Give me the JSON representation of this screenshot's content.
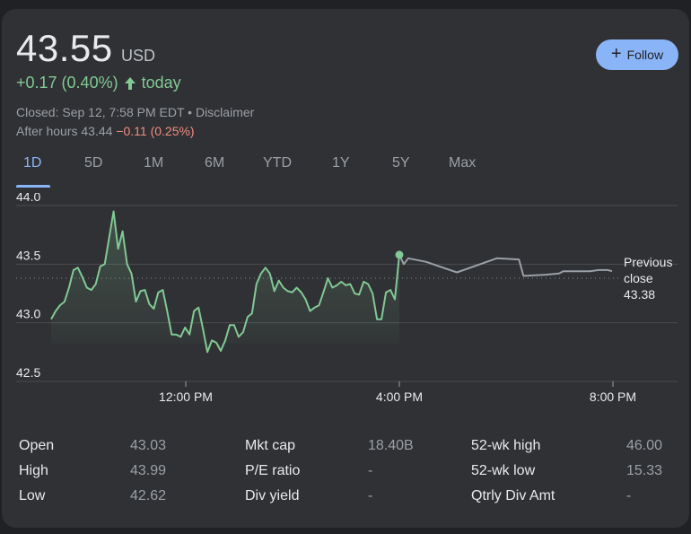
{
  "quote": {
    "price": "43.55",
    "currency": "USD",
    "change": "+0.17 (0.40%)",
    "change_suffix": "today",
    "closed_text": "Closed: Sep 12, 7:58 PM EDT • Disclaimer",
    "after_hours_prefix": "After hours 43.44",
    "after_hours_change": "−0.11 (0.25%)",
    "follow_label": "Follow"
  },
  "tabs": [
    {
      "label": "1D",
      "active": true
    },
    {
      "label": "5D"
    },
    {
      "label": "1M"
    },
    {
      "label": "6M"
    },
    {
      "label": "YTD"
    },
    {
      "label": "1Y"
    },
    {
      "label": "5Y"
    },
    {
      "label": "Max"
    }
  ],
  "colors": {
    "up": "#81c995",
    "down": "#f28b82",
    "accent": "#8ab4f8",
    "after_hours_line": "#9aa0a6"
  },
  "chart_data": {
    "type": "line",
    "y_ticks": [
      "44.0",
      "43.5",
      "43.0",
      "42.5"
    ],
    "ylim": [
      42.5,
      44.0
    ],
    "x_ticks": [
      "12:00 PM",
      "4:00 PM",
      "8:00 PM"
    ],
    "previous_close": {
      "label_line1": "Previous",
      "label_line2": "close",
      "value": 43.38,
      "value_text": "43.38"
    },
    "series": [
      {
        "session": "regular",
        "points": [
          [
            9.5,
            43.03
          ],
          [
            9.6,
            43.1
          ],
          [
            9.7,
            43.15
          ],
          [
            9.8,
            43.18
          ],
          [
            9.9,
            43.3
          ],
          [
            10.0,
            43.45
          ],
          [
            10.1,
            43.47
          ],
          [
            10.2,
            43.39
          ],
          [
            10.3,
            43.3
          ],
          [
            10.4,
            43.28
          ],
          [
            10.5,
            43.33
          ],
          [
            10.6,
            43.48
          ],
          [
            10.7,
            43.5
          ],
          [
            10.8,
            43.73
          ],
          [
            10.9,
            43.95
          ],
          [
            11.0,
            43.63
          ],
          [
            11.1,
            43.78
          ],
          [
            11.2,
            43.5
          ],
          [
            11.3,
            43.42
          ],
          [
            11.4,
            43.18
          ],
          [
            11.5,
            43.27
          ],
          [
            11.6,
            43.28
          ],
          [
            11.7,
            43.16
          ],
          [
            11.8,
            43.12
          ],
          [
            11.9,
            43.26
          ],
          [
            12.0,
            43.28
          ],
          [
            12.1,
            43.1
          ],
          [
            12.2,
            42.9
          ],
          [
            12.3,
            42.9
          ],
          [
            12.4,
            42.88
          ],
          [
            12.5,
            42.96
          ],
          [
            12.6,
            42.9
          ],
          [
            12.7,
            43.1
          ],
          [
            12.8,
            43.13
          ],
          [
            12.9,
            42.95
          ],
          [
            13.0,
            42.75
          ],
          [
            13.1,
            42.85
          ],
          [
            13.2,
            42.83
          ],
          [
            13.3,
            42.76
          ],
          [
            13.4,
            42.85
          ],
          [
            13.5,
            42.98
          ],
          [
            13.6,
            42.98
          ],
          [
            13.7,
            42.88
          ],
          [
            13.8,
            42.92
          ],
          [
            13.9,
            43.05
          ],
          [
            14.0,
            43.08
          ],
          [
            14.1,
            43.33
          ],
          [
            14.2,
            43.42
          ],
          [
            14.3,
            43.47
          ],
          [
            14.4,
            43.42
          ],
          [
            14.5,
            43.27
          ],
          [
            14.6,
            43.36
          ],
          [
            14.7,
            43.3
          ],
          [
            14.8,
            43.27
          ],
          [
            14.9,
            43.26
          ],
          [
            15.0,
            43.3
          ],
          [
            15.1,
            43.26
          ],
          [
            15.2,
            43.2
          ],
          [
            15.3,
            43.1
          ],
          [
            15.4,
            43.13
          ],
          [
            15.5,
            43.15
          ],
          [
            15.6,
            43.26
          ],
          [
            15.7,
            43.38
          ],
          [
            15.8,
            43.3
          ],
          [
            15.9,
            43.32
          ],
          [
            16.0,
            43.35
          ],
          [
            16.1,
            43.32
          ],
          [
            16.2,
            43.33
          ],
          [
            16.3,
            43.25
          ],
          [
            16.4,
            43.24
          ],
          [
            16.5,
            43.35
          ],
          [
            16.6,
            43.33
          ],
          [
            16.7,
            43.25
          ],
          [
            16.8,
            43.03
          ],
          [
            16.9,
            43.03
          ],
          [
            17.0,
            43.26
          ],
          [
            17.1,
            43.28
          ],
          [
            17.2,
            43.2
          ],
          [
            17.3,
            43.58
          ]
        ]
      },
      {
        "session": "after_hours",
        "points": [
          [
            16.0,
            43.58
          ],
          [
            16.1,
            43.5
          ],
          [
            16.2,
            43.55
          ],
          [
            16.6,
            43.52
          ],
          [
            17.3,
            43.43
          ],
          [
            18.2,
            43.55
          ],
          [
            18.7,
            43.54
          ],
          [
            18.8,
            43.4
          ],
          [
            19.3,
            43.41
          ],
          [
            19.6,
            43.42
          ],
          [
            19.7,
            43.44
          ],
          [
            20.3,
            43.44
          ],
          [
            20.5,
            43.45
          ],
          [
            20.7,
            43.45
          ],
          [
            20.8,
            43.44
          ]
        ]
      }
    ]
  },
  "stats": [
    {
      "label": "Open",
      "value": "43.03"
    },
    {
      "label": "High",
      "value": "43.99"
    },
    {
      "label": "Low",
      "value": "42.62"
    },
    {
      "label": "Mkt cap",
      "value": "18.40B"
    },
    {
      "label": "P/E ratio",
      "value": "-"
    },
    {
      "label": "Div yield",
      "value": "-"
    },
    {
      "label": "52-wk high",
      "value": "46.00"
    },
    {
      "label": "52-wk low",
      "value": "15.33"
    },
    {
      "label": "Qtrly Div Amt",
      "value": "-"
    }
  ]
}
